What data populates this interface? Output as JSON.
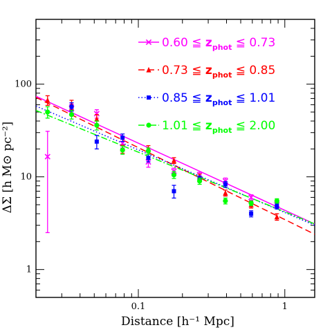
{
  "chart_data": {
    "type": "scatter",
    "title": "",
    "xlabel": "Distance [h⁻¹ Mpc]",
    "ylabel": "ΔΣ [h M⊙ pc⁻²]",
    "xscale": "log",
    "yscale": "log",
    "xlim": [
      0.02,
      1.6
    ],
    "ylim": [
      0.5,
      500
    ],
    "x_ticks": [
      {
        "value": 0.1,
        "label": "0.1"
      },
      {
        "value": 1,
        "label": "1"
      }
    ],
    "y_ticks": [
      {
        "value": 1,
        "label": "1"
      },
      {
        "value": 10,
        "label": "10"
      },
      {
        "value": 100,
        "label": "100"
      }
    ],
    "legend_position": "top-right",
    "series": [
      {
        "name_parts": {
          "low": "0.60",
          "op": "≦",
          "z": "z",
          "sub": "phot",
          "high": "0.73"
        },
        "color": "#ff00ff",
        "marker": "cross",
        "line_style": "solid",
        "fit": {
          "x": [
            0.02,
            1.6
          ],
          "y": [
            74,
            3.1
          ]
        },
        "points": [
          {
            "x": 0.024,
            "y": 16.5,
            "lo": 2.5,
            "hi": 31
          },
          {
            "x": 0.035,
            "y": 55,
            "lo": 49,
            "hi": 61
          },
          {
            "x": 0.052,
            "y": 48,
            "lo": 43,
            "hi": 53
          },
          {
            "x": 0.078,
            "y": 23,
            "lo": 20.5,
            "hi": 25.5
          },
          {
            "x": 0.117,
            "y": 14.5,
            "lo": 12.7,
            "hi": 16.3
          },
          {
            "x": 0.175,
            "y": 11.5,
            "lo": 10.6,
            "hi": 12.4
          },
          {
            "x": 0.262,
            "y": 10.5,
            "lo": 9.8,
            "hi": 11.2
          },
          {
            "x": 0.393,
            "y": 9,
            "lo": 8.3,
            "hi": 9.7
          },
          {
            "x": 0.589,
            "y": 6,
            "lo": 5.6,
            "hi": 6.4
          },
          {
            "x": 0.883,
            "y": 5,
            "lo": 4.7,
            "hi": 5.3
          }
        ]
      },
      {
        "name_parts": {
          "low": "0.73",
          "op": "≦",
          "z": "z",
          "sub": "phot",
          "high": "0.85"
        },
        "color": "#ff0000",
        "marker": "triangle",
        "line_style": "dashed",
        "fit": {
          "x": [
            0.02,
            1.6
          ],
          "y": [
            72,
            2.4
          ]
        },
        "points": [
          {
            "x": 0.024,
            "y": 67,
            "lo": 59,
            "hi": 75
          },
          {
            "x": 0.035,
            "y": 60,
            "lo": 53,
            "hi": 67
          },
          {
            "x": 0.052,
            "y": 42,
            "lo": 37,
            "hi": 47
          },
          {
            "x": 0.078,
            "y": 20,
            "lo": 18,
            "hi": 22
          },
          {
            "x": 0.117,
            "y": 20,
            "lo": 18.3,
            "hi": 21.7
          },
          {
            "x": 0.175,
            "y": 15,
            "lo": 13.9,
            "hi": 16.1
          },
          {
            "x": 0.262,
            "y": 10,
            "lo": 9.3,
            "hi": 10.7
          },
          {
            "x": 0.393,
            "y": 6.7,
            "lo": 6.2,
            "hi": 7.2
          },
          {
            "x": 0.589,
            "y": 5,
            "lo": 4.6,
            "hi": 5.4
          },
          {
            "x": 0.883,
            "y": 3.7,
            "lo": 3.4,
            "hi": 4.0
          }
        ]
      },
      {
        "name_parts": {
          "low": "0.85",
          "op": "≦",
          "z": "z",
          "sub": "phot",
          "high": "1.01"
        },
        "color": "#0000ff",
        "marker": "square",
        "line_style": "dotted",
        "fit": {
          "x": [
            0.02,
            1.6
          ],
          "y": [
            58,
            3.0
          ]
        },
        "points": [
          {
            "x": 0.035,
            "y": 57,
            "lo": 51,
            "hi": 63
          },
          {
            "x": 0.052,
            "y": 24,
            "lo": 20,
            "hi": 28
          },
          {
            "x": 0.078,
            "y": 26.5,
            "lo": 24,
            "hi": 29
          },
          {
            "x": 0.117,
            "y": 16,
            "lo": 14.5,
            "hi": 17.5
          },
          {
            "x": 0.175,
            "y": 7,
            "lo": 5.9,
            "hi": 8.1
          },
          {
            "x": 0.262,
            "y": 9.5,
            "lo": 8.8,
            "hi": 10.2
          },
          {
            "x": 0.393,
            "y": 8.3,
            "lo": 7.7,
            "hi": 8.9
          },
          {
            "x": 0.589,
            "y": 4,
            "lo": 3.7,
            "hi": 4.3
          },
          {
            "x": 0.883,
            "y": 4.8,
            "lo": 4.5,
            "hi": 5.1
          }
        ]
      },
      {
        "name_parts": {
          "low": "1.01",
          "op": "≦",
          "z": "z",
          "sub": "phot",
          "high": "2.00"
        },
        "color": "#00ff00",
        "marker": "circle",
        "line_style": "dashdot",
        "fit": {
          "x": [
            0.02,
            1.6
          ],
          "y": [
            52,
            3.1
          ]
        },
        "points": [
          {
            "x": 0.024,
            "y": 50,
            "lo": 43,
            "hi": 57
          },
          {
            "x": 0.035,
            "y": 47,
            "lo": 42,
            "hi": 52
          },
          {
            "x": 0.052,
            "y": 36,
            "lo": 32,
            "hi": 40
          },
          {
            "x": 0.078,
            "y": 19.5,
            "lo": 17.5,
            "hi": 21.5
          },
          {
            "x": 0.117,
            "y": 19,
            "lo": 17.5,
            "hi": 20.5
          },
          {
            "x": 0.175,
            "y": 10.5,
            "lo": 9.6,
            "hi": 11.4
          },
          {
            "x": 0.262,
            "y": 9,
            "lo": 8.3,
            "hi": 9.7
          },
          {
            "x": 0.393,
            "y": 5.5,
            "lo": 5.1,
            "hi": 5.9
          },
          {
            "x": 0.589,
            "y": 5.2,
            "lo": 4.9,
            "hi": 5.5
          },
          {
            "x": 0.883,
            "y": 5.5,
            "lo": 5.2,
            "hi": 5.8
          }
        ]
      }
    ]
  }
}
